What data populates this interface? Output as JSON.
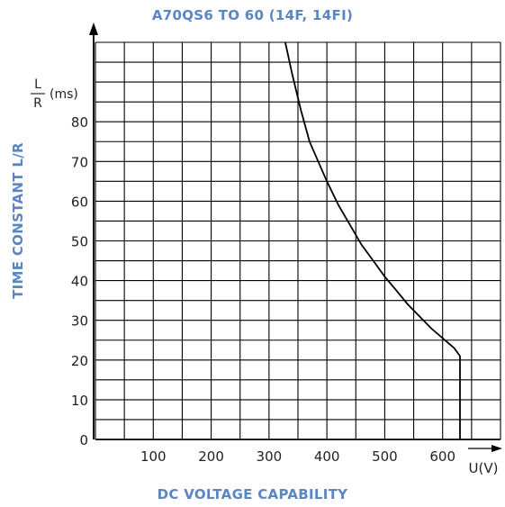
{
  "title": "A70QS6 TO 60 (14F, 14FI)",
  "chart_data": {
    "type": "line",
    "title": "A70QS6 TO 60 (14F, 14FI)",
    "xlabel": "DC VOLTAGE CAPABILITY",
    "ylabel": "TIME CONSTANT L/R",
    "x_unit": "U(V)",
    "y_unit_num": "L",
    "y_unit_den": "R",
    "y_unit_suffix": "(ms)",
    "xlim": [
      0,
      700
    ],
    "ylim": [
      0,
      100
    ],
    "x_ticks": [
      100,
      200,
      300,
      400,
      500,
      600
    ],
    "y_ticks": [
      0,
      10,
      20,
      30,
      40,
      50,
      60,
      70,
      80
    ],
    "grid": true,
    "series": [
      {
        "x": [
          328,
          340,
          355,
          370,
          385,
          400,
          420,
          440,
          460,
          480,
          500,
          520,
          540,
          560,
          580,
          600,
          620,
          630,
          630
        ],
        "y": [
          100,
          92,
          83,
          75,
          70,
          65,
          59,
          54,
          49,
          45,
          41,
          37.5,
          34,
          31,
          28,
          25.5,
          23,
          21,
          0
        ]
      }
    ]
  }
}
